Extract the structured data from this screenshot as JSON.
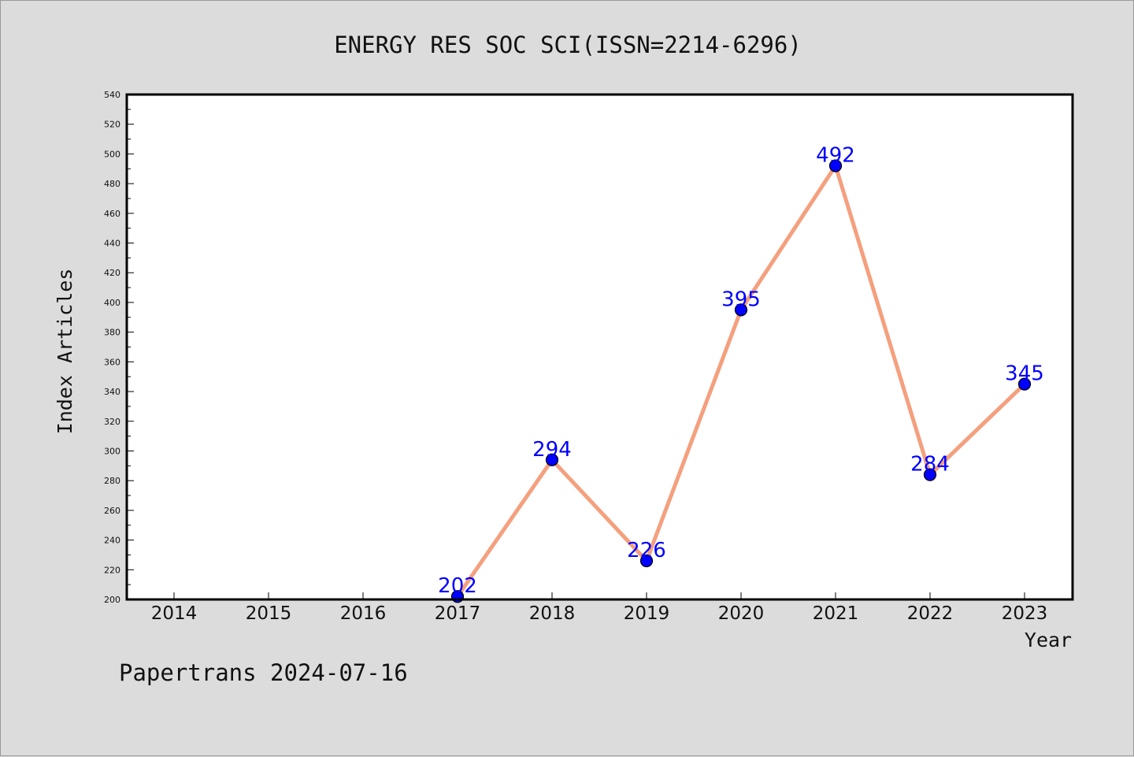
{
  "chart_data": {
    "type": "line",
    "title": "ENERGY RES SOC SCI(ISSN=2214-6296)",
    "xlabel": "Year",
    "ylabel": "Index Articles",
    "categories": [
      "2014",
      "2015",
      "2016",
      "2017",
      "2018",
      "2019",
      "2020",
      "2021",
      "2022",
      "2023"
    ],
    "points": [
      {
        "x": "2017",
        "y": 202
      },
      {
        "x": "2018",
        "y": 294
      },
      {
        "x": "2019",
        "y": 226
      },
      {
        "x": "2020",
        "y": 395
      },
      {
        "x": "2021",
        "y": 492
      },
      {
        "x": "2022",
        "y": 284
      },
      {
        "x": "2023",
        "y": 345
      }
    ],
    "ylim": [
      200,
      540
    ],
    "yticks": [
      200,
      220,
      240,
      260,
      280,
      300,
      320,
      340,
      360,
      380,
      400,
      420,
      440,
      460,
      480,
      500,
      520,
      540
    ],
    "grid": false,
    "legend": "none",
    "colors": {
      "line": "#f4a07e",
      "marker": "#0000ff",
      "label": "#0000ff",
      "background": "#dcdcdc",
      "plot_area": "#ffffff"
    }
  },
  "footer": "Papertrans 2024-07-16"
}
